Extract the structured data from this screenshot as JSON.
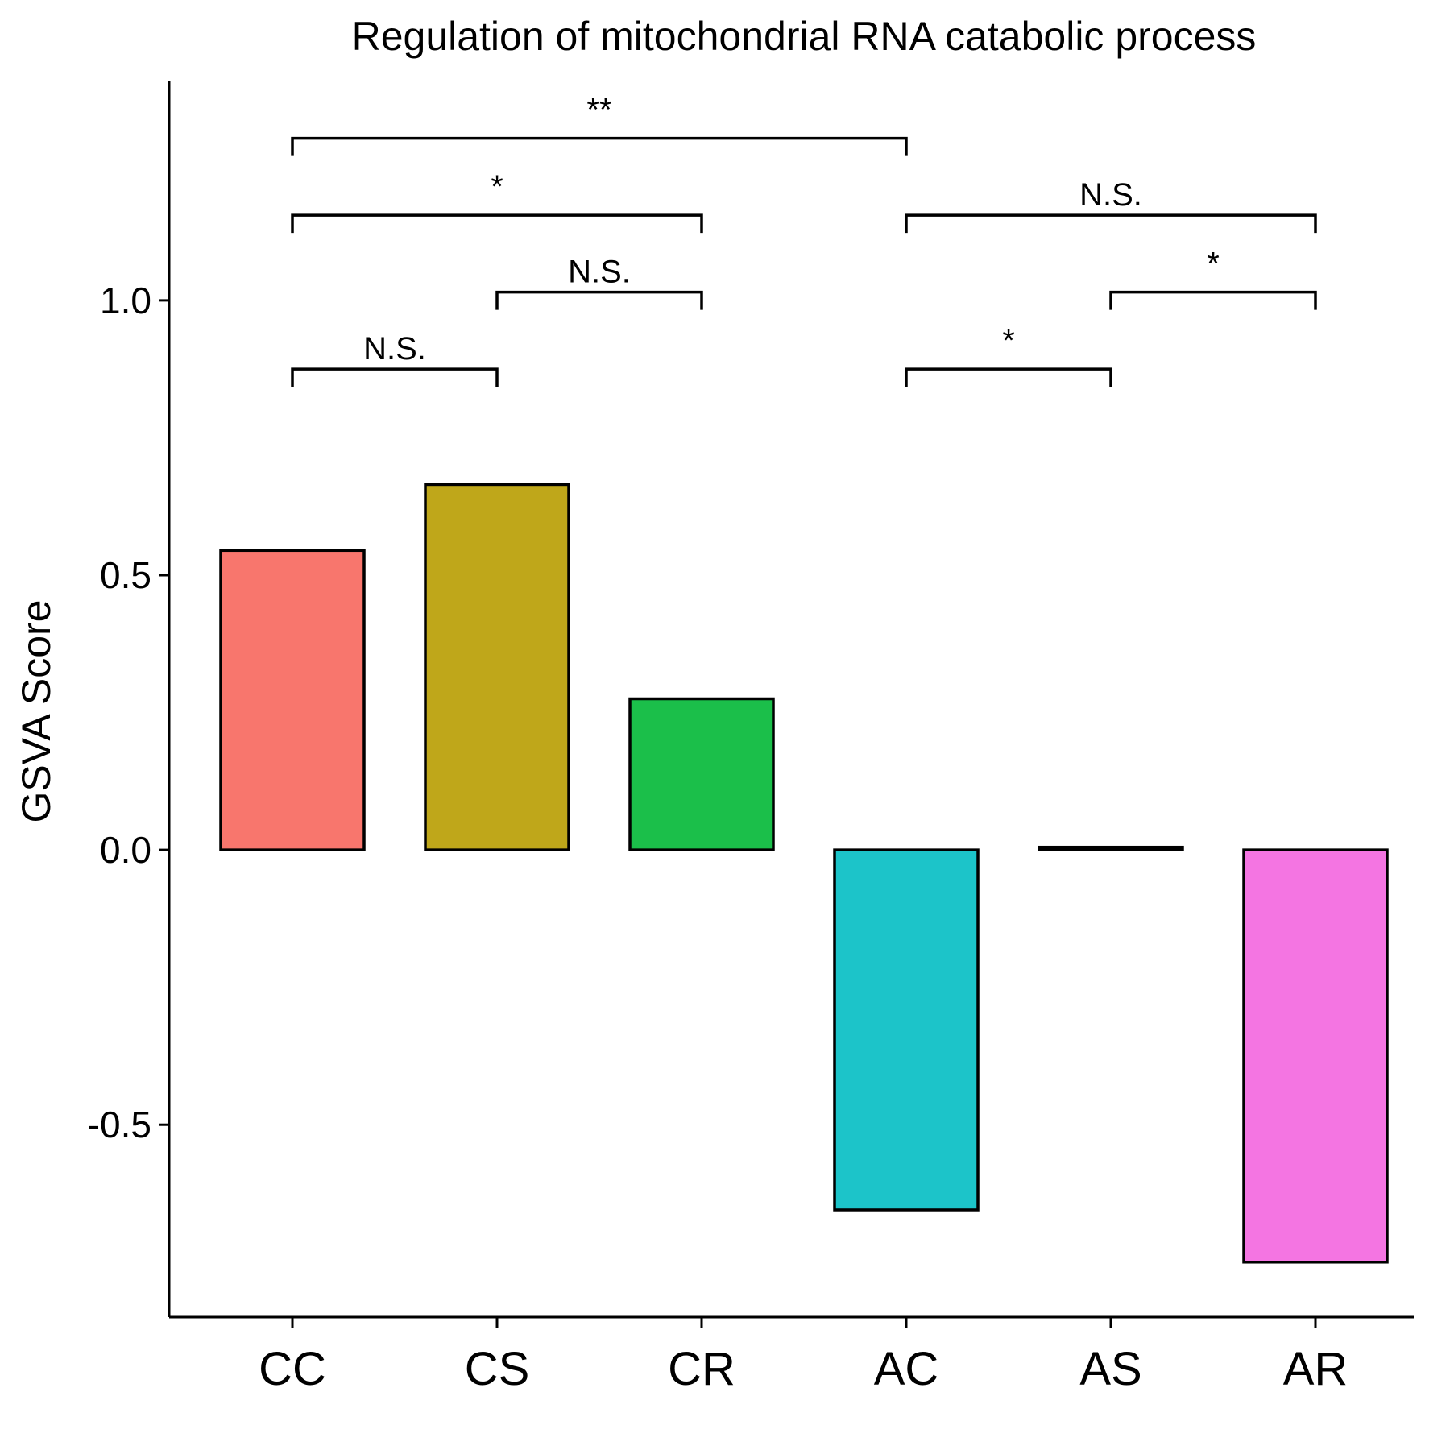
{
  "chart_data": {
    "type": "bar",
    "title": "Regulation of mitochondrial RNA catabolic process",
    "xlabel": "",
    "ylabel": "GSVA Score",
    "categories": [
      "CC",
      "CS",
      "CR",
      "AC",
      "AS",
      "AR"
    ],
    "values": [
      0.545,
      0.665,
      0.275,
      -0.655,
      0.005,
      -0.75
    ],
    "colors": [
      "#F8766D",
      "#BFA71A",
      "#1BBF4A",
      "#1CC4C9",
      "#000000",
      "#F475E2"
    ],
    "ylim": [
      -0.85,
      1.4
    ],
    "yticks": [
      -0.5,
      0.0,
      0.5,
      1.0
    ],
    "ytick_labels": [
      "-0.5",
      "0.0",
      "0.5",
      "1.0"
    ],
    "grid": false,
    "legend": "none",
    "annotations": [
      {
        "from": "CC",
        "to": "CS",
        "y": 0.875,
        "label": "N.S."
      },
      {
        "from": "CS",
        "to": "CR",
        "y": 1.015,
        "label": "N.S."
      },
      {
        "from": "CC",
        "to": "CR",
        "y": 1.155,
        "label": "*"
      },
      {
        "from": "CC",
        "to": "AC",
        "y": 1.295,
        "label": "**"
      },
      {
        "from": "AC",
        "to": "AS",
        "y": 0.875,
        "label": "*"
      },
      {
        "from": "AS",
        "to": "AR",
        "y": 1.015,
        "label": "*"
      },
      {
        "from": "AC",
        "to": "AR",
        "y": 1.155,
        "label": "N.S."
      }
    ]
  }
}
